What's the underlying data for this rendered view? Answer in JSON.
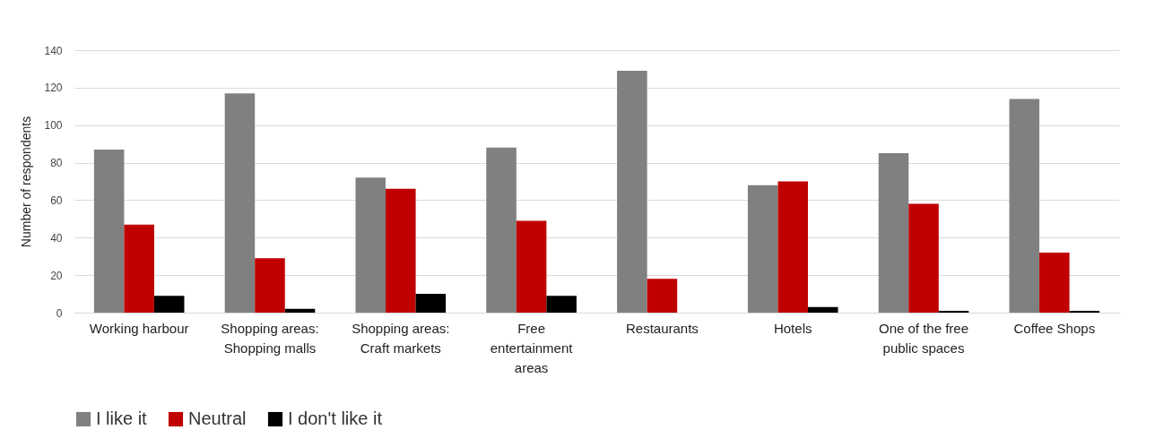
{
  "chart_data": {
    "type": "bar",
    "ylabel": "Number of respondents",
    "categories": [
      "Working harbour",
      "Shopping areas: Shopping malls",
      "Shopping areas: Craft markets",
      "Free entertainment areas",
      "Restaurants",
      "Hotels",
      "One of the free public spaces",
      "Coffee Shops"
    ],
    "series": [
      {
        "name": "I like it",
        "color": "#808080",
        "values": [
          87,
          117,
          72,
          88,
          129,
          68,
          85,
          114
        ]
      },
      {
        "name": "Neutral",
        "color": "#c00000",
        "values": [
          47,
          29,
          66,
          49,
          18,
          70,
          58,
          32
        ]
      },
      {
        "name": "I don't like it",
        "color": "#000000",
        "values": [
          9,
          2,
          10,
          9,
          0,
          3,
          1,
          1
        ]
      }
    ],
    "ylim": [
      0,
      140
    ],
    "yticks": [
      0,
      20,
      40,
      60,
      80,
      100,
      120,
      140
    ],
    "grid": "y",
    "legend": "bottom"
  }
}
